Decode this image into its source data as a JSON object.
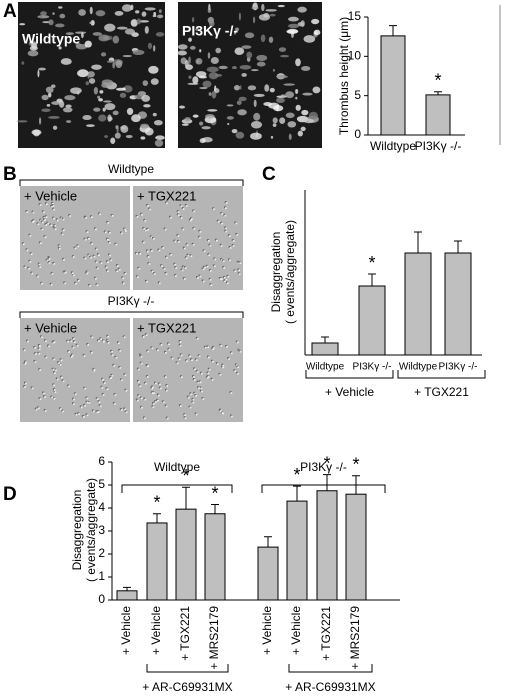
{
  "panel_labels": [
    "A",
    "B",
    "C",
    "D"
  ],
  "panel_a": {
    "image_labels": [
      "Wildtype",
      "PI3Kγ -/-"
    ]
  },
  "panel_b": {
    "group_titles": [
      "Wildtype",
      "PI3Kγ -/-"
    ],
    "image_labels": [
      "+ Vehicle",
      "+ TGX221",
      "+ Vehicle",
      "+ TGX221"
    ]
  },
  "chart_data": [
    {
      "type": "bar",
      "y_label": [
        "Thrombus height (μm)"
      ],
      "categories": [
        "Wildtype",
        "PI3Kγ -/-"
      ],
      "values": [
        12.6,
        5.1
      ],
      "errors": [
        1.3,
        0.4
      ],
      "annotations": [
        null,
        "*"
      ],
      "color": "#bfbfbf",
      "ylim": [
        0,
        15
      ],
      "yticks": [
        0,
        5,
        10,
        15
      ]
    },
    {
      "type": "bar",
      "y_label": [
        "Disaggregation",
        "( events/aggregate)"
      ],
      "categories": [
        "Wildtype",
        "PI3Kγ -/-",
        "Wildtype",
        "PI3Kγ -/-"
      ],
      "values": [
        0.4,
        2.3,
        3.4,
        3.4
      ],
      "errors": [
        0.2,
        0.4,
        0.7,
        0.4
      ],
      "annotations": [
        null,
        "*",
        null,
        null
      ],
      "group_labels": [
        "+ Vehicle",
        "+ TGX221"
      ],
      "color": "#bfbfbf",
      "ylim": [
        0,
        5.5
      ]
    },
    {
      "type": "bar",
      "y_label": [
        "Disaggregation",
        "( events/aggregate)"
      ],
      "categories": [
        "+ Vehicle",
        "+ Vehicle",
        "+ TGX221",
        "+ MRS2179",
        "+ Vehicle",
        "+ Vehicle",
        "+ TGX221",
        "+ MRS2179"
      ],
      "values": [
        0.4,
        3.35,
        3.95,
        3.75,
        2.3,
        4.3,
        4.75,
        4.6
      ],
      "errors": [
        0.15,
        0.4,
        0.95,
        0.4,
        0.45,
        0.65,
        0.7,
        0.8
      ],
      "annotations": [
        null,
        "*",
        "*",
        "*",
        null,
        "*",
        "*",
        "*"
      ],
      "top_group_labels": [
        "Wildtype",
        "PI3Kγ -/-"
      ],
      "bottom_group_labels": [
        "+ AR-C69931MX",
        "+ AR-C69931MX"
      ],
      "color": "#bfbfbf",
      "ylim": [
        0,
        6
      ],
      "yticks": [
        0,
        1,
        2,
        3,
        4,
        5,
        6
      ]
    }
  ]
}
